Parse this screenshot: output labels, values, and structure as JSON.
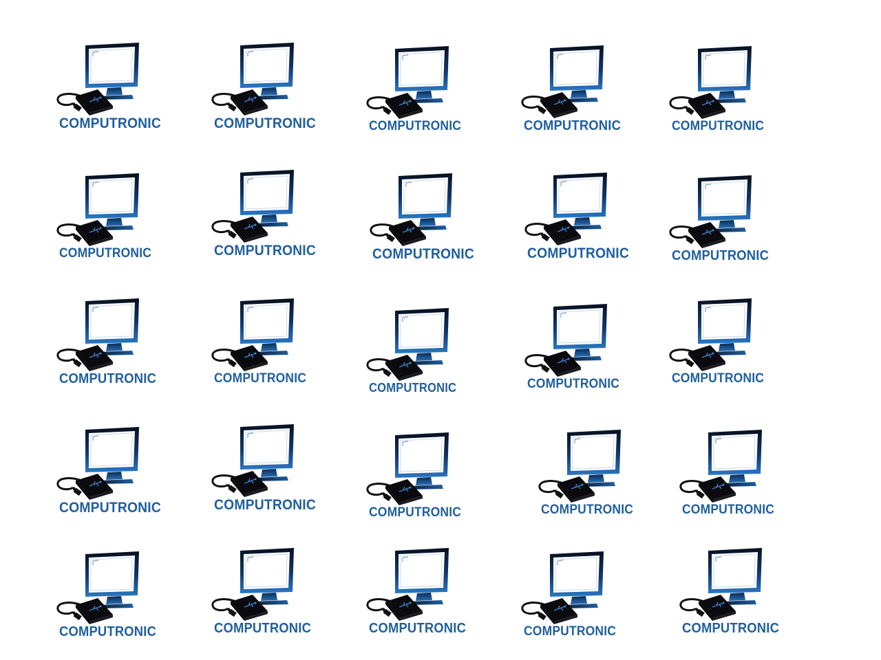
{
  "colors": {
    "background": "#ffffff",
    "brand_blue": "#1f5f9f",
    "screen_white": "#ffffff",
    "bezel_dark": "#0a1a33",
    "bezel_mid": "#1b5aa0",
    "device_black": "#0b0b0f",
    "cable_black": "#111111"
  },
  "icons": {
    "logo": "computer-monitor-with-usb-drive-icon"
  },
  "grid": {
    "rows": 5,
    "columns": 5,
    "tiles": [
      {
        "label": "COMPUTRONIC"
      },
      {
        "label": "COMPUTRONIC"
      },
      {
        "label": "COMPUTRONIC"
      },
      {
        "label": "COMPUTRONIC"
      },
      {
        "label": "COMPUTRONIC"
      },
      {
        "label": "COMPUTRONIC"
      },
      {
        "label": "COMPUTRONIC"
      },
      {
        "label": "COMPUTRONIC"
      },
      {
        "label": "COMPUTRONIC"
      },
      {
        "label": "COMPUTRONIC"
      },
      {
        "label": "COMPUTRONIC"
      },
      {
        "label": "COMPUTRONIC"
      },
      {
        "label": "COMPUTRONIC"
      },
      {
        "label": "COMPUTRONIC"
      },
      {
        "label": "COMPUTRONIC"
      },
      {
        "label": "COMPUTRONIC"
      },
      {
        "label": "COMPUTRONIC"
      },
      {
        "label": "COMPUTRONIC"
      },
      {
        "label": "COMPUTRONIC"
      },
      {
        "label": "COMPUTRONIC"
      },
      {
        "label": "COMPUTRONIC"
      },
      {
        "label": "COMPUTRONIC"
      },
      {
        "label": "COMPUTRONIC"
      },
      {
        "label": "COMPUTRONIC"
      },
      {
        "label": "COMPUTRONIC"
      }
    ]
  }
}
